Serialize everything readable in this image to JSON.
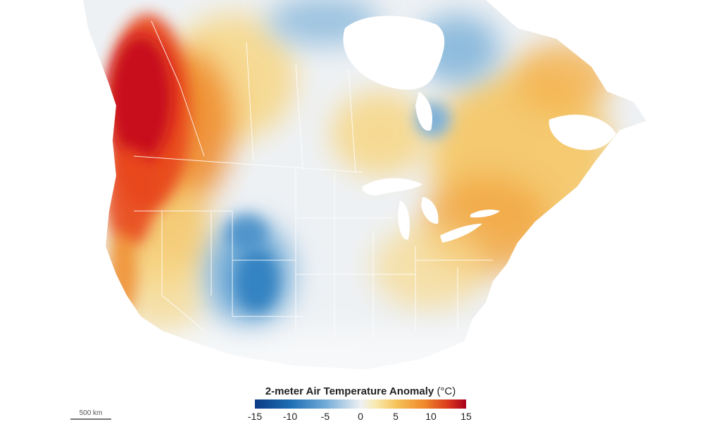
{
  "legend": {
    "title": "2-meter Air Temperature Anomaly",
    "unit": "(°C)",
    "ticks": [
      "-15",
      "-10",
      "-5",
      "0",
      "5",
      "10",
      "15"
    ],
    "min": -15,
    "max": 15,
    "colors": [
      "#0a3b82",
      "#1f6fb5",
      "#6ea9d6",
      "#eef1f4",
      "#f6c35a",
      "#ef8a2c",
      "#a8001c"
    ]
  },
  "scale_bar": {
    "label": "500 km"
  },
  "map": {
    "subject": "North America air temperature anomaly",
    "land_color": "#eef1f4",
    "water_color": "#ffffff",
    "border_color": "#ffffff",
    "hot_color": "#c8101e",
    "cold_color": "#2f7fc0"
  }
}
